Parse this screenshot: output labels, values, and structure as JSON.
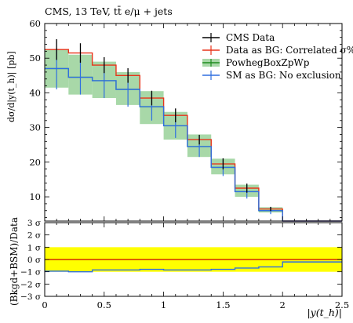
{
  "header": {
    "title": "CMS, 13 TeV, tt̄ e/μ + jets"
  },
  "colors": {
    "data": "#000000",
    "data_as_bg": "#e8341a",
    "powheg_line": "#1e8b1e",
    "powheg_band": "#a8d8a8",
    "sm_as_bg": "#2f6fe0",
    "ratio_band": "#ffff00",
    "ratio_line": "#cc0000"
  },
  "chart_data": [
    {
      "type": "line",
      "title": "",
      "ylabel": "dσ/d|y(t_h)| [pb]",
      "xlabel": "",
      "xlim": [
        0,
        2.5
      ],
      "ylim": [
        3,
        60
      ],
      "y_ticks": [
        {
          "value": 10,
          "label": "10"
        },
        {
          "value": 20,
          "label": "20"
        },
        {
          "value": 30,
          "label": "30"
        },
        {
          "value": 40,
          "label": "40"
        },
        {
          "value": 50,
          "label": "50"
        },
        {
          "value": 60,
          "label": "60"
        }
      ],
      "bin_edges": [
        0,
        0.2,
        0.4,
        0.6,
        0.8,
        1.0,
        1.2,
        1.4,
        1.6,
        1.8,
        2.0,
        2.5
      ],
      "legend": {
        "position": "top-right",
        "entries": [
          {
            "label": "CMS Data",
            "key": "data"
          },
          {
            "label": "Data as BG: Correlated σ%",
            "key": "data_as_bg"
          },
          {
            "label": "PowhegBoxZpWp",
            "key": "powheg"
          },
          {
            "label": "SM as BG: No exclusion",
            "key": "sm_as_bg"
          }
        ]
      },
      "series": [
        {
          "name": "CMS Data",
          "key": "data",
          "style": "points",
          "x": [
            0.1,
            0.3,
            0.5,
            0.7,
            0.9,
            1.1,
            1.3,
            1.5,
            1.7,
            1.9
          ],
          "values": [
            52.5,
            51.5,
            48.0,
            45.0,
            38.5,
            33.5,
            26.5,
            19.5,
            12.5,
            6.5
          ],
          "err": [
            3.0,
            2.8,
            2.3,
            2.1,
            2.1,
            2.0,
            1.4,
            1.6,
            1.3,
            0.6
          ]
        },
        {
          "name": "Data as BG: Correlated σ%",
          "key": "data_as_bg",
          "style": "step",
          "values": [
            52.5,
            51.5,
            48.0,
            45.0,
            38.5,
            33.5,
            26.5,
            19.5,
            12.5,
            6.5,
            0
          ],
          "err": [
            0.3,
            0.3,
            0.3,
            0.3,
            0.3,
            0.3,
            0.3,
            0.3,
            0.3,
            0.3,
            0
          ]
        },
        {
          "name": "PowhegBoxZpWp",
          "key": "powheg",
          "style": "band",
          "values": [
            47.0,
            44.5,
            43.5,
            41.0,
            36.0,
            30.5,
            24.5,
            18.5,
            11.5,
            6.0,
            0
          ],
          "band_low": [
            41.5,
            39.5,
            38.5,
            36.5,
            31.0,
            26.5,
            21.5,
            16.5,
            10.0,
            5.5,
            0
          ],
          "band_high": [
            52.5,
            51.0,
            49.0,
            46.0,
            40.5,
            34.5,
            28.0,
            21.0,
            13.5,
            7.0,
            0
          ]
        },
        {
          "name": "SM as BG: No exclusion",
          "key": "sm_as_bg",
          "style": "step",
          "values": [
            47.0,
            44.5,
            43.5,
            41.0,
            36.0,
            30.5,
            24.5,
            18.5,
            11.5,
            6.0,
            0
          ],
          "err": [
            6.0,
            5.0,
            5.0,
            5.0,
            4.0,
            3.5,
            3.0,
            2.5,
            2.0,
            1.0,
            0
          ]
        }
      ]
    },
    {
      "type": "line",
      "title": "",
      "ylabel": "(Bkgd+BSM)/Data",
      "xlabel": "|y(t_h)|",
      "xlim": [
        0,
        2.5
      ],
      "ylim": [
        -3,
        3
      ],
      "x_ticks": [
        {
          "value": 0,
          "label": "0"
        },
        {
          "value": 0.5,
          "label": "0.5"
        },
        {
          "value": 1.0,
          "label": "1"
        },
        {
          "value": 1.5,
          "label": "1.5"
        },
        {
          "value": 2.0,
          "label": "2"
        },
        {
          "value": 2.5,
          "label": "2.5"
        }
      ],
      "y_ticks": [
        {
          "value": 3,
          "label": "3 σ"
        },
        {
          "value": 2,
          "label": "2 σ"
        },
        {
          "value": 1,
          "label": "1 σ"
        },
        {
          "value": 0,
          "label": "0 σ"
        },
        {
          "value": -1,
          "label": "−1 σ"
        },
        {
          "value": -2,
          "label": "−2 σ"
        },
        {
          "value": -3,
          "label": "−3 σ"
        }
      ],
      "band": [
        -1,
        1
      ],
      "reference_line": 0,
      "bin_edges": [
        0,
        0.2,
        0.4,
        0.6,
        0.8,
        1.0,
        1.2,
        1.4,
        1.6,
        1.8,
        2.0,
        2.5
      ],
      "series": [
        {
          "name": "SM as BG: No exclusion",
          "key": "sm_as_bg",
          "style": "step",
          "values": [
            -0.95,
            -1.0,
            -0.85,
            -0.85,
            -0.8,
            -0.85,
            -0.85,
            -0.8,
            -0.7,
            -0.6,
            -0.2
          ]
        }
      ]
    }
  ]
}
